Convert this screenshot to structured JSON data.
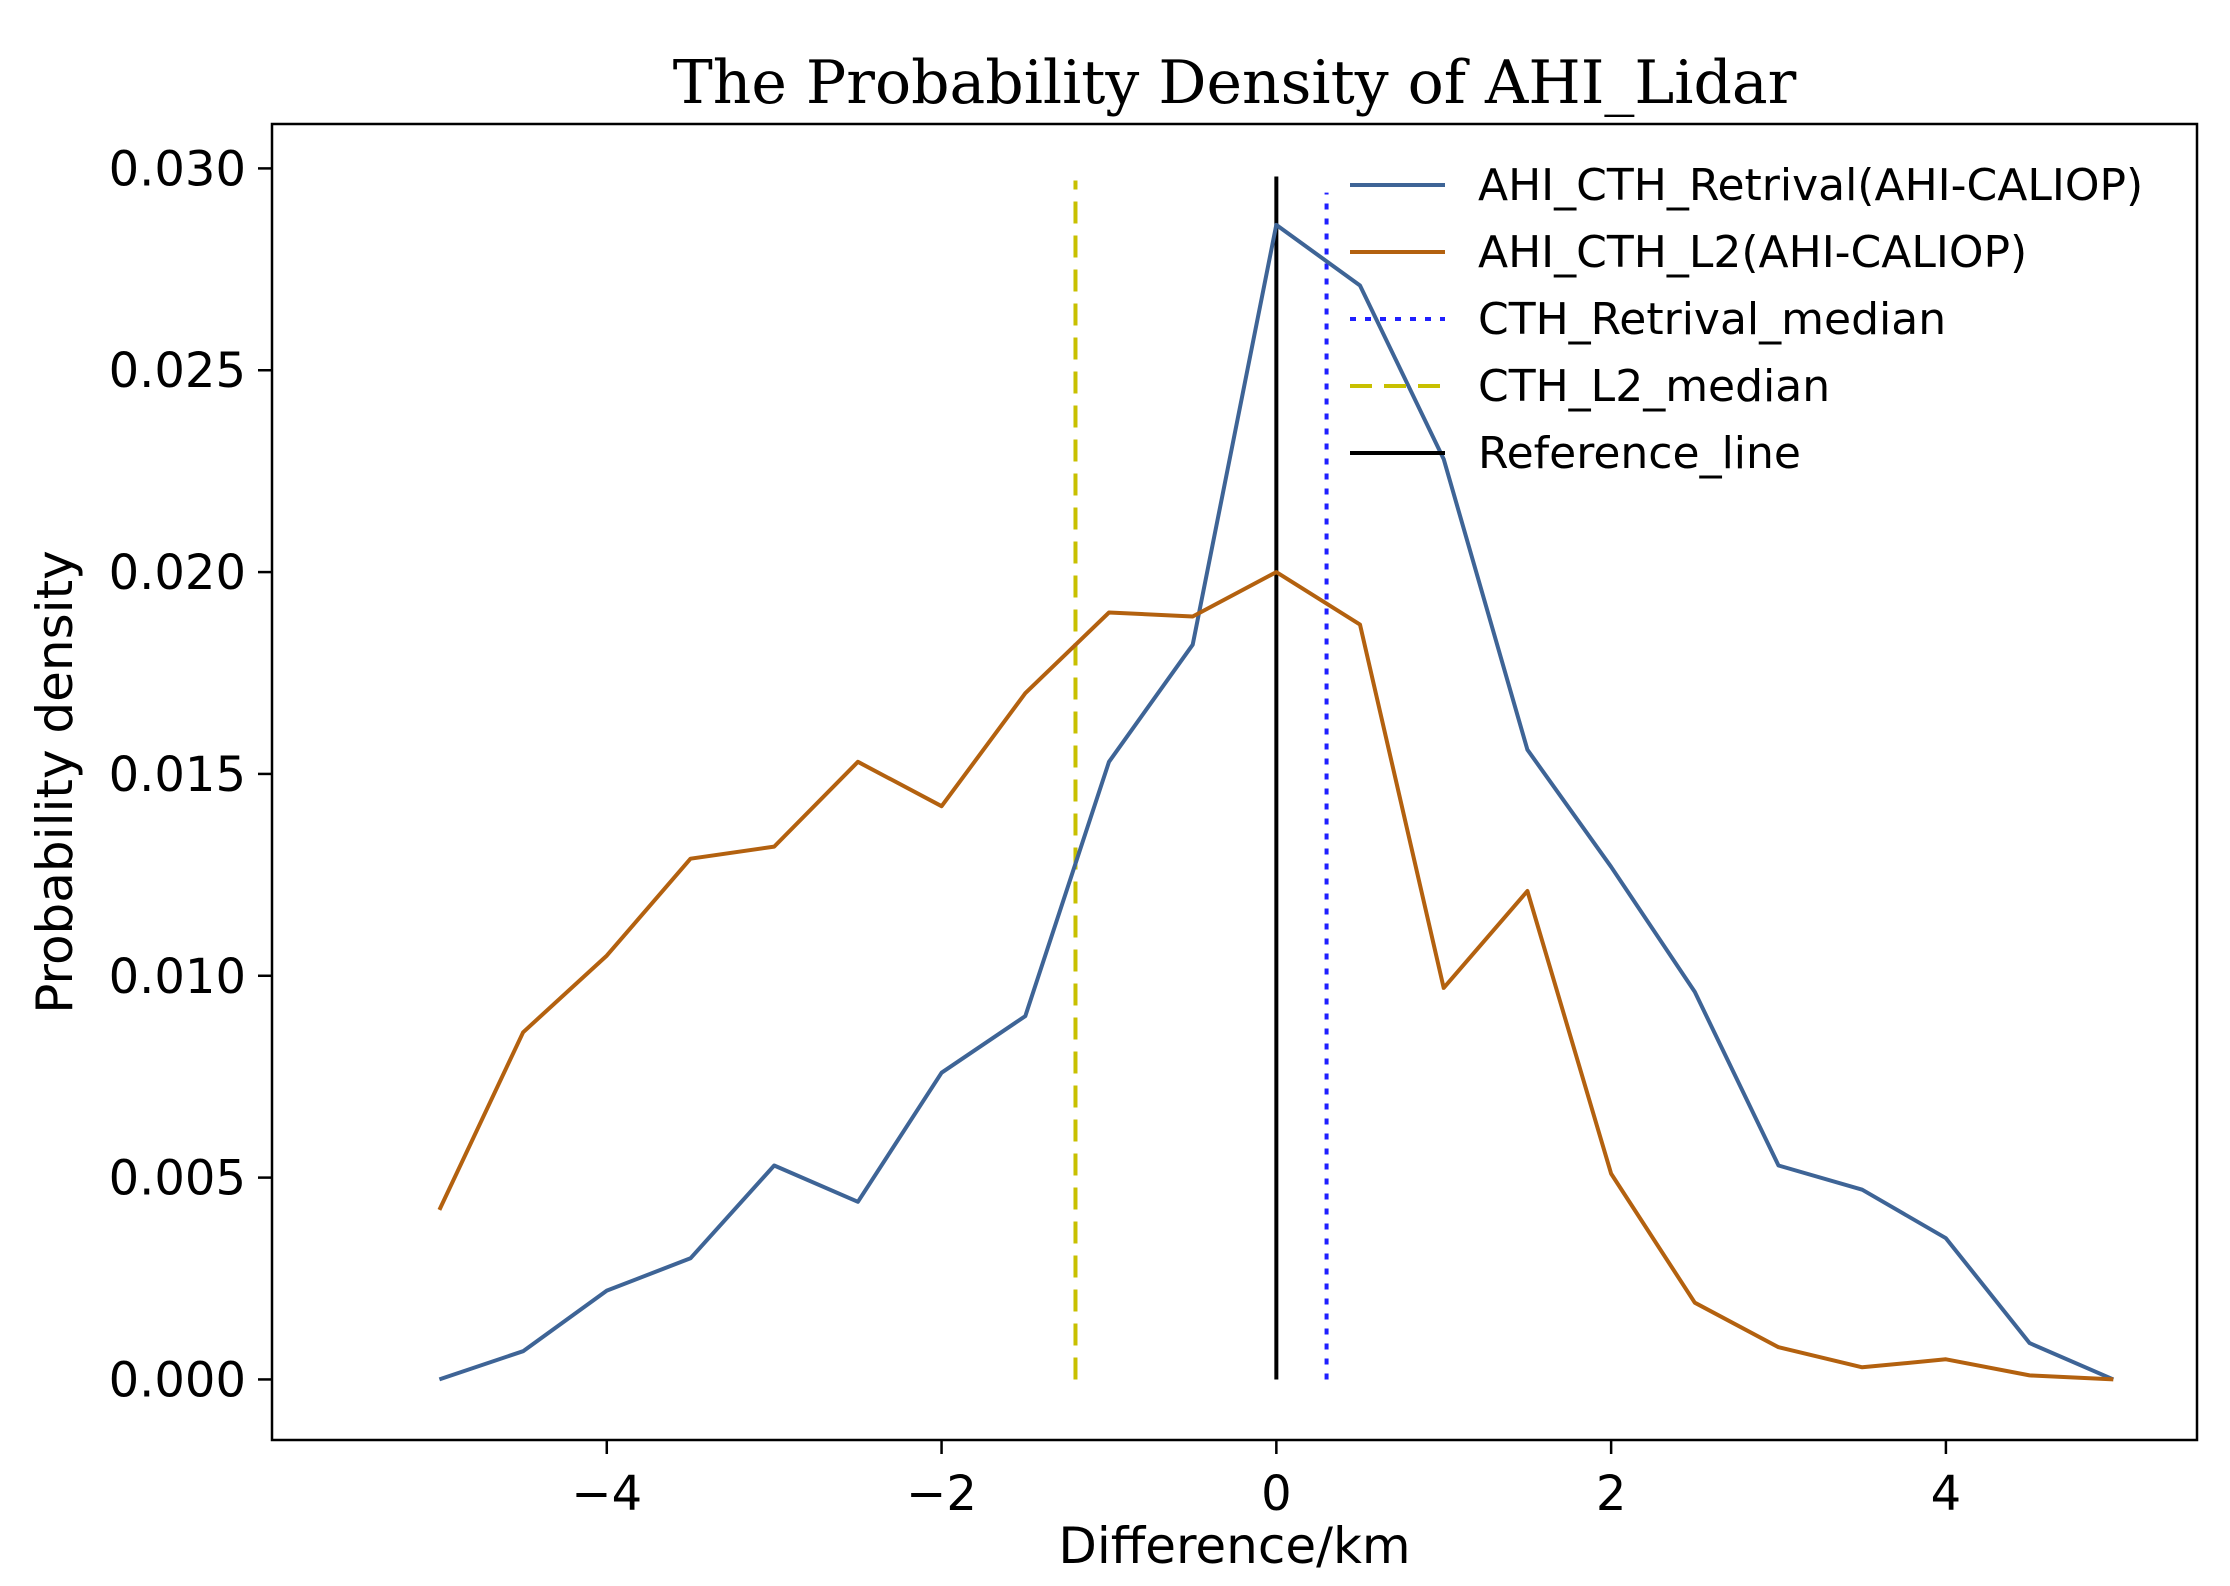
{
  "chart_data": {
    "type": "line",
    "title": "The Probability Density of AHI_Lidar",
    "xlabel": "Difference/km",
    "ylabel": "Probability density",
    "xlim": [
      -6.0,
      5.5
    ],
    "ylim": [
      -0.0015,
      0.0311
    ],
    "xticks": [
      -4,
      -2,
      0,
      2,
      4
    ],
    "xtick_labels": [
      "−4",
      "−2",
      "0",
      "2",
      "4"
    ],
    "yticks": [
      0.0,
      0.005,
      0.01,
      0.015,
      0.02,
      0.025,
      0.03
    ],
    "ytick_labels": [
      "0.000",
      "0.005",
      "0.010",
      "0.015",
      "0.020",
      "0.025",
      "0.030"
    ],
    "grid": false,
    "legend_position": "top-right",
    "x": [
      -5,
      -4.5,
      -4,
      -3.5,
      -3,
      -2.5,
      -2,
      -1.5,
      -1,
      -0.5,
      0,
      0.5,
      1,
      1.5,
      2,
      2.5,
      3,
      3.5,
      4,
      4.5,
      5
    ],
    "series": [
      {
        "name": "AHI_CTH_Retrival(AHI-CALIOP)",
        "color": "#3E6496",
        "style": "solid",
        "values": [
          0.0,
          0.0007,
          0.0022,
          0.003,
          0.0053,
          0.0044,
          0.0076,
          0.009,
          0.0153,
          0.0182,
          0.0286,
          0.0271,
          0.0228,
          0.0156,
          0.0127,
          0.0096,
          0.0053,
          0.0047,
          0.0035,
          0.0009,
          0.0
        ]
      },
      {
        "name": "AHI_CTH_L2(AHI-CALIOP)",
        "color": "#B3610F",
        "style": "solid",
        "values": [
          0.0042,
          0.0086,
          0.0105,
          0.0129,
          0.0132,
          0.0153,
          0.0142,
          0.017,
          0.019,
          0.0189,
          0.02,
          0.0187,
          0.0097,
          0.0121,
          0.0051,
          0.0019,
          0.0008,
          0.0003,
          0.0005,
          0.0001,
          0.0
        ]
      }
    ],
    "vlines": [
      {
        "name": "CTH_Retrival_median",
        "x": 0.3,
        "ymin": 0.0,
        "ymax": 0.0294,
        "color": "#1F1FFF",
        "style": "dotted"
      },
      {
        "name": "CTH_L2_median",
        "x": -1.2,
        "ymin": 0.0,
        "ymax": 0.0297,
        "color": "#C8C000",
        "style": "dashed"
      },
      {
        "name": "Reference_line",
        "x": 0.0,
        "ymin": 0.0,
        "ymax": 0.0298,
        "color": "#000000",
        "style": "solid"
      }
    ],
    "legend": [
      {
        "label": "AHI_CTH_Retrival(AHI-CALIOP)",
        "color": "#3E6496",
        "style": "solid"
      },
      {
        "label": "AHI_CTH_L2(AHI-CALIOP)",
        "color": "#B3610F",
        "style": "solid"
      },
      {
        "label": "CTH_Retrival_median",
        "color": "#1F1FFF",
        "style": "dotted"
      },
      {
        "label": "CTH_L2_median",
        "color": "#C8C000",
        "style": "dashed"
      },
      {
        "label": "Reference_line",
        "color": "#000000",
        "style": "solid"
      }
    ]
  }
}
